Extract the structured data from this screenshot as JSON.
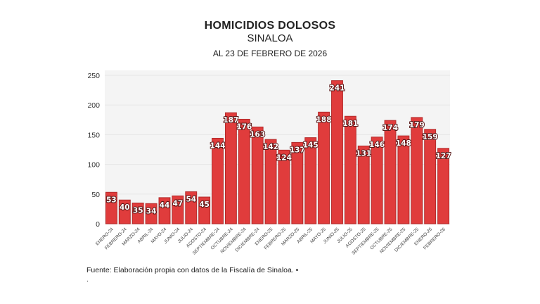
{
  "chart_data": {
    "type": "bar",
    "title": "HOMICIDIOS DOLOSOS",
    "subtitle": "SINALOA",
    "date_note": "AL 23 DE FEBRERO DE 2026",
    "categories": [
      "ENERO-24",
      "FEBRERO-24",
      "MARZO-24",
      "ABRIL-24",
      "MAYO-24",
      "JUNIO-24",
      "JULIO-24",
      "AGOSTO-24",
      "SEPTIEMBRE-24",
      "OCTUBRE-24",
      "NOVIEMBRE-24",
      "DICIEMBRE-24",
      "ENERO-25",
      "FEBRERO-25",
      "MARZO-25",
      "ABRIL-25",
      "MAYO-25",
      "JUNIO-25",
      "JULIO-25",
      "AGOSTO-25",
      "SEPTIEMBRE-25",
      "OCTUBRE-25",
      "NOVIEMBRE-25",
      "DICIEMBRE-25",
      "ENERO-26",
      "FEBRERO-26"
    ],
    "values": [
      53,
      40,
      35,
      34,
      44,
      47,
      54,
      45,
      144,
      187,
      176,
      163,
      142,
      124,
      137,
      145,
      188,
      241,
      181,
      131,
      146,
      174,
      148,
      179,
      159,
      127
    ],
    "yticks": [
      0,
      50,
      100,
      150,
      200,
      250
    ],
    "ylim": [
      0,
      250
    ],
    "xlabel": "",
    "ylabel": "",
    "grid": true,
    "bar_color": "#e03c3c",
    "bar_edge_color": "#b32a2a"
  },
  "footer": {
    "source": "Fuente: Elaboración propia con datos de la Fiscalía de Sinaloa. •",
    "extra": "."
  }
}
